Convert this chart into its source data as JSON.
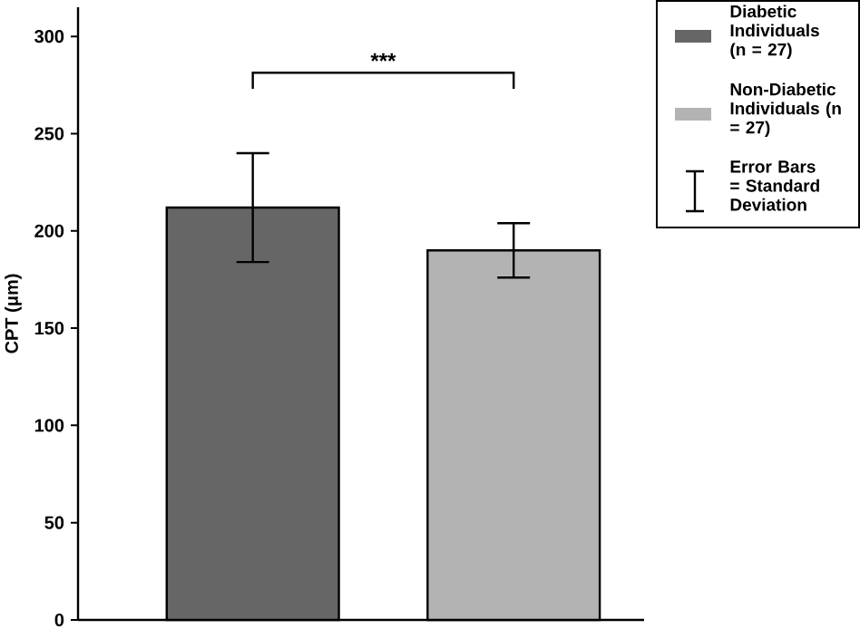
{
  "chart_data": {
    "type": "bar",
    "ylabel": "CPT (μm)",
    "categories": [
      null,
      null
    ],
    "series": [
      {
        "name": "Diabetic Individuals (n = 27)",
        "color": "#666666",
        "values": [
          212,
          null
        ],
        "errors": [
          28,
          null
        ]
      },
      {
        "name": "Non-Diabetic Individuals (n = 27)",
        "color": "#b3b3b3",
        "values": [
          null,
          190
        ],
        "errors": [
          null,
          14
        ]
      }
    ],
    "ylim": [
      0,
      315
    ],
    "yticks": [
      0,
      50,
      100,
      150,
      200,
      250,
      300
    ],
    "legend": "top right",
    "annotations": [
      "***",
      "Error Bars = Standard Deviation"
    ]
  }
}
